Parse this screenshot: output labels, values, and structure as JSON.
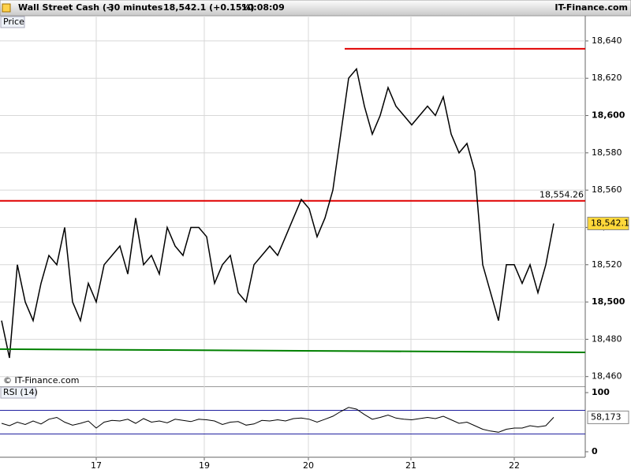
{
  "header": {
    "title": "Wall Street Cash (-)",
    "interval": "30 minutes",
    "quote": "18,542.1 (+0.15%)",
    "time": "10:08:09",
    "brand": "IT-Finance.com"
  },
  "chart_data": [
    {
      "type": "line",
      "pane_label": "Price",
      "watermark": "© IT-Finance.com",
      "color": "#000000",
      "x": [
        0,
        1,
        2,
        3,
        4,
        5,
        6,
        7,
        8,
        9,
        10,
        11,
        12,
        13,
        14,
        15,
        16,
        17,
        18,
        19,
        20,
        21,
        22,
        23,
        24,
        25,
        26,
        27,
        28,
        29,
        30,
        31,
        32,
        33,
        34,
        35,
        36,
        37,
        38,
        39,
        40,
        41,
        42,
        43,
        44,
        45,
        46,
        47,
        48,
        49,
        50,
        51,
        52,
        53,
        54,
        55,
        56,
        57,
        58,
        59,
        60,
        61,
        62,
        63,
        64,
        65,
        66,
        67,
        68,
        69,
        70
      ],
      "values": [
        18490,
        18470,
        18520,
        18500,
        18490,
        18510,
        18525,
        18520,
        18540,
        18500,
        18490,
        18510,
        18500,
        18520,
        18525,
        18530,
        18515,
        18545,
        18520,
        18525,
        18515,
        18540,
        18530,
        18525,
        18540,
        18540,
        18535,
        18510,
        18520,
        18525,
        18505,
        18500,
        18520,
        18525,
        18530,
        18525,
        18535,
        18545,
        18555,
        18550,
        18535,
        18545,
        18560,
        18590,
        18620,
        18625,
        18605,
        18590,
        18600,
        18615,
        18605,
        18600,
        18595,
        18600,
        18605,
        18600,
        18610,
        18590,
        18580,
        18585,
        18570,
        18520,
        18505,
        18490,
        18520,
        18520,
        18510,
        18520,
        18505,
        18520,
        18542.1
      ],
      "xlim": [
        -0.2,
        74
      ],
      "xticks": [
        {
          "value": 12,
          "label": "17"
        },
        {
          "value": 25.7,
          "label": "19"
        },
        {
          "value": 38.9,
          "label": "20"
        },
        {
          "value": 51.9,
          "label": "21"
        },
        {
          "value": 65,
          "label": "22"
        }
      ],
      "ylim": [
        18454.8,
        18653.5
      ],
      "yticks": [
        {
          "value": 18460,
          "label": "18,460"
        },
        {
          "value": 18480,
          "label": "18,480"
        },
        {
          "value": 18500,
          "label": "18,500"
        },
        {
          "value": 18520,
          "label": "18,520"
        },
        {
          "value": 18540,
          "label": "18,540"
        },
        {
          "value": 18560,
          "label": "18,560"
        },
        {
          "value": 18580,
          "label": "18,580"
        },
        {
          "value": 18600,
          "label": "18,600"
        },
        {
          "value": 18620,
          "label": "18,620"
        },
        {
          "value": 18640,
          "label": "18,640"
        }
      ],
      "grid": true,
      "levels": [
        {
          "value": 18635.8,
          "x_start": 43.5,
          "color": "#e00000"
        },
        {
          "value": 18554.26,
          "label": "18,554.26",
          "x_start": -0.2,
          "color": "#e00000"
        }
      ],
      "trendline": {
        "x": [
          -0.2,
          74
        ],
        "values": [
          18474.7,
          18473
        ],
        "color": "#008000"
      },
      "last": {
        "value": 18542.1,
        "label": "18,542.1"
      }
    },
    {
      "type": "line",
      "pane_label": "RSI (14)",
      "color": "#000000",
      "values": [
        48,
        44,
        50,
        46,
        52,
        47,
        55,
        58,
        50,
        45,
        48,
        52,
        40,
        50,
        53,
        52,
        55,
        48,
        56,
        50,
        52,
        49,
        55,
        53,
        51,
        55,
        54,
        52,
        46,
        50,
        51,
        45,
        47,
        53,
        52,
        54,
        52,
        56,
        57,
        55,
        50,
        55,
        60,
        68,
        75,
        72,
        63,
        55,
        58,
        62,
        57,
        55,
        54,
        56,
        58,
        56,
        60,
        54,
        48,
        50,
        44,
        38,
        35,
        33,
        38,
        40,
        40,
        44,
        42,
        44,
        58.173
      ],
      "ylim": [
        -9.3,
        110.7
      ],
      "yticks": [
        0,
        100
      ],
      "levels": [
        {
          "value": 70,
          "color": "#2020a0"
        },
        {
          "value": 30,
          "color": "#2020a0"
        }
      ],
      "last": {
        "value": 58.173,
        "label": "58,173"
      }
    }
  ]
}
